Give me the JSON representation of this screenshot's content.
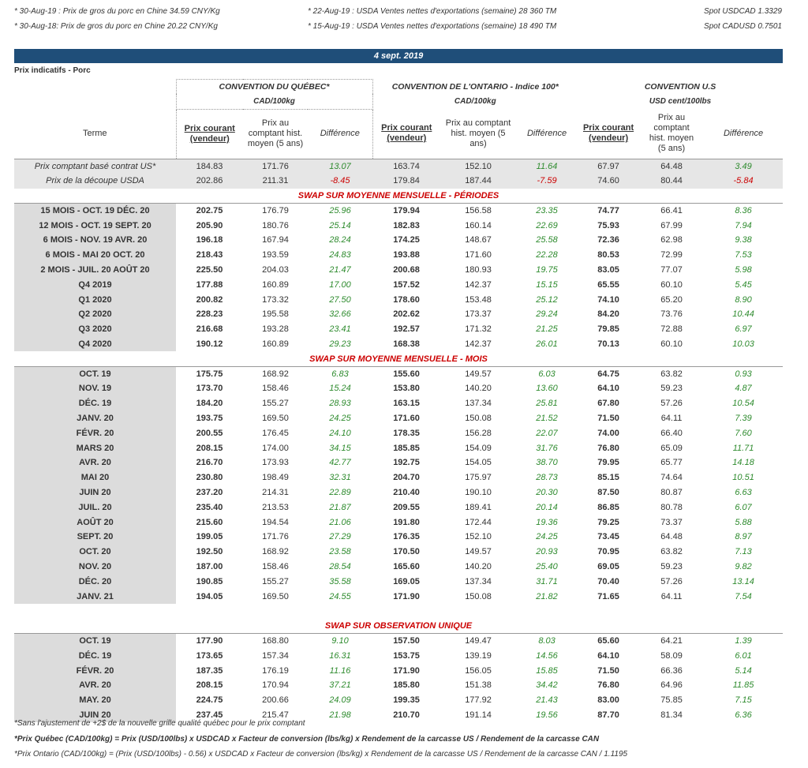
{
  "notes": {
    "n1": "* 30-Aug-19 : Prix de gros du porc en Chine  34.59 CNY/Kg",
    "n2": "* 30-Aug-18: Prix de gros du porc en Chine 20.22  CNY/Kg",
    "n3": "* 22-Aug-19 : USDA Ventes nettes d'exportations (semaine)  28 360 TM",
    "n4": "* 15-Aug-19 : USDA Ventes nettes d'exportations (semaine) 18 490 TM",
    "n5": "Spot USDCAD 1.3329",
    "n6": "Spot CADUSD 0.7501"
  },
  "banner": "4 sept. 2019",
  "subtitle": "Prix indicatifs - Porc",
  "header": {
    "qc_title": "CONVENTION DU QUÉBEC*",
    "qc_unit": "CAD/100kg",
    "on_title": "CONVENTION DE L'ONTARIO - Indice 100*",
    "on_unit": "CAD/100kg",
    "us_title": "CONVENTION U.S",
    "us_unit": "USD cent/100lbs",
    "terme": "Terme",
    "prix_courant": "Prix courant (vendeur)",
    "prix_hist_qc": "Prix au comptant hist. moyen (5 ans)",
    "prix_hist_on": "Prix au comptant hist. moyen (5 ans)",
    "prix_hist_us": "Prix au comptant hist. moyen (5 ans)",
    "difference": "Différence"
  },
  "ref_rows": [
    {
      "term": "Prix comptant basé contrat US*",
      "v": [
        "184.83",
        "171.76",
        "13.07",
        "163.74",
        "152.10",
        "11.64",
        "67.97",
        "64.48",
        "3.49"
      ],
      "neg": false
    },
    {
      "term": "Prix de la découpe USDA",
      "v": [
        "202.86",
        "211.31",
        "-8.45",
        "179.84",
        "187.44",
        "-7.59",
        "74.60",
        "80.44",
        "-5.84"
      ],
      "neg": true
    }
  ],
  "sections": [
    {
      "title": "SWAP SUR MOYENNE MENSUELLE - PÉRIODES",
      "rows": [
        {
          "term": "15 MOIS -  OCT. 19 DÉC. 20",
          "v": [
            "202.75",
            "176.79",
            "25.96",
            "179.94",
            "156.58",
            "23.35",
            "74.77",
            "66.41",
            "8.36"
          ]
        },
        {
          "term": "12 MOIS -  OCT. 19 SEPT. 20",
          "v": [
            "205.90",
            "180.76",
            "25.14",
            "182.83",
            "160.14",
            "22.69",
            "75.93",
            "67.99",
            "7.94"
          ]
        },
        {
          "term": "6 MOIS -  NOV. 19 AVR. 20",
          "v": [
            "196.18",
            "167.94",
            "28.24",
            "174.25",
            "148.67",
            "25.58",
            "72.36",
            "62.98",
            "9.38"
          ]
        },
        {
          "term": "6 MOIS -  MAI 20 OCT. 20",
          "v": [
            "218.43",
            "193.59",
            "24.83",
            "193.88",
            "171.60",
            "22.28",
            "80.53",
            "72.99",
            "7.53"
          ]
        },
        {
          "term": "2 MOIS -  JUIL. 20  AOÛT 20",
          "v": [
            "225.50",
            "204.03",
            "21.47",
            "200.68",
            "180.93",
            "19.75",
            "83.05",
            "77.07",
            "5.98"
          ]
        },
        {
          "term": "Q4 2019",
          "v": [
            "177.88",
            "160.89",
            "17.00",
            "157.52",
            "142.37",
            "15.15",
            "65.55",
            "60.10",
            "5.45"
          ]
        },
        {
          "term": "Q1 2020",
          "v": [
            "200.82",
            "173.32",
            "27.50",
            "178.60",
            "153.48",
            "25.12",
            "74.10",
            "65.20",
            "8.90"
          ]
        },
        {
          "term": "Q2 2020",
          "v": [
            "228.23",
            "195.58",
            "32.66",
            "202.62",
            "173.37",
            "29.24",
            "84.20",
            "73.76",
            "10.44"
          ]
        },
        {
          "term": "Q3 2020",
          "v": [
            "216.68",
            "193.28",
            "23.41",
            "192.57",
            "171.32",
            "21.25",
            "79.85",
            "72.88",
            "6.97"
          ]
        },
        {
          "term": "Q4 2020",
          "v": [
            "190.12",
            "160.89",
            "29.23",
            "168.38",
            "142.37",
            "26.01",
            "70.13",
            "60.10",
            "10.03"
          ]
        }
      ]
    },
    {
      "title": "SWAP SUR MOYENNE MENSUELLE - MOIS",
      "rows": [
        {
          "term": "OCT. 19",
          "v": [
            "175.75",
            "168.92",
            "6.83",
            "155.60",
            "149.57",
            "6.03",
            "64.75",
            "63.82",
            "0.93"
          ]
        },
        {
          "term": "NOV. 19",
          "v": [
            "173.70",
            "158.46",
            "15.24",
            "153.80",
            "140.20",
            "13.60",
            "64.10",
            "59.23",
            "4.87"
          ]
        },
        {
          "term": "DÉC. 19",
          "v": [
            "184.20",
            "155.27",
            "28.93",
            "163.15",
            "137.34",
            "25.81",
            "67.80",
            "57.26",
            "10.54"
          ]
        },
        {
          "term": "JANV. 20",
          "v": [
            "193.75",
            "169.50",
            "24.25",
            "171.60",
            "150.08",
            "21.52",
            "71.50",
            "64.11",
            "7.39"
          ]
        },
        {
          "term": "FÉVR. 20",
          "v": [
            "200.55",
            "176.45",
            "24.10",
            "178.35",
            "156.28",
            "22.07",
            "74.00",
            "66.40",
            "7.60"
          ]
        },
        {
          "term": "MARS 20",
          "v": [
            "208.15",
            "174.00",
            "34.15",
            "185.85",
            "154.09",
            "31.76",
            "76.80",
            "65.09",
            "11.71"
          ]
        },
        {
          "term": "AVR. 20",
          "v": [
            "216.70",
            "173.93",
            "42.77",
            "192.75",
            "154.05",
            "38.70",
            "79.95",
            "65.77",
            "14.18"
          ]
        },
        {
          "term": "MAI 20",
          "v": [
            "230.80",
            "198.49",
            "32.31",
            "204.70",
            "175.97",
            "28.73",
            "85.15",
            "74.64",
            "10.51"
          ]
        },
        {
          "term": "JUIN 20",
          "v": [
            "237.20",
            "214.31",
            "22.89",
            "210.40",
            "190.10",
            "20.30",
            "87.50",
            "80.87",
            "6.63"
          ]
        },
        {
          "term": "JUIL. 20",
          "v": [
            "235.40",
            "213.53",
            "21.87",
            "209.55",
            "189.41",
            "20.14",
            "86.85",
            "80.78",
            "6.07"
          ]
        },
        {
          "term": "AOÛT 20",
          "v": [
            "215.60",
            "194.54",
            "21.06",
            "191.80",
            "172.44",
            "19.36",
            "79.25",
            "73.37",
            "5.88"
          ]
        },
        {
          "term": "SEPT. 20",
          "v": [
            "199.05",
            "171.76",
            "27.29",
            "176.35",
            "152.10",
            "24.25",
            "73.45",
            "64.48",
            "8.97"
          ]
        },
        {
          "term": "OCT. 20",
          "v": [
            "192.50",
            "168.92",
            "23.58",
            "170.50",
            "149.57",
            "20.93",
            "70.95",
            "63.82",
            "7.13"
          ]
        },
        {
          "term": "NOV. 20",
          "v": [
            "187.00",
            "158.46",
            "28.54",
            "165.60",
            "140.20",
            "25.40",
            "69.05",
            "59.23",
            "9.82"
          ]
        },
        {
          "term": "DÉC. 20",
          "v": [
            "190.85",
            "155.27",
            "35.58",
            "169.05",
            "137.34",
            "31.71",
            "70.40",
            "57.26",
            "13.14"
          ]
        },
        {
          "term": "JANV. 21",
          "v": [
            "194.05",
            "169.50",
            "24.55",
            "171.90",
            "150.08",
            "21.82",
            "71.65",
            "64.11",
            "7.54"
          ]
        }
      ]
    },
    {
      "title": "SWAP SUR OBSERVATION UNIQUE",
      "rows": [
        {
          "term": "OCT. 19",
          "v": [
            "177.90",
            "168.80",
            "9.10",
            "157.50",
            "149.47",
            "8.03",
            "65.60",
            "64.21",
            "1.39"
          ]
        },
        {
          "term": "DÉC. 19",
          "v": [
            "173.65",
            "157.34",
            "16.31",
            "153.75",
            "139.19",
            "14.56",
            "64.10",
            "58.09",
            "6.01"
          ]
        },
        {
          "term": "FÉVR. 20",
          "v": [
            "187.35",
            "176.19",
            "11.16",
            "171.90",
            "156.05",
            "15.85",
            "71.50",
            "66.36",
            "5.14"
          ]
        },
        {
          "term": "AVR. 20",
          "v": [
            "208.15",
            "170.94",
            "37.21",
            "185.80",
            "151.38",
            "34.42",
            "76.80",
            "64.96",
            "11.85"
          ]
        },
        {
          "term": "MAY. 20",
          "v": [
            "224.75",
            "200.66",
            "24.09",
            "199.35",
            "177.92",
            "21.43",
            "83.00",
            "75.85",
            "7.15"
          ]
        },
        {
          "term": "JUIN 20",
          "v": [
            "237.45",
            "215.47",
            "21.98",
            "210.70",
            "191.14",
            "19.56",
            "87.70",
            "81.34",
            "6.36"
          ]
        }
      ]
    }
  ],
  "footnotes": {
    "f1": "*Sans l'ajustement de +2$ de la nouvelle grille qualité québec pour le prix comptant",
    "f2": "*Prix Québec (CAD/100kg) = Prix (USD/100lbs) x USDCAD x Facteur de conversion (lbs/kg) x Rendement de la carcasse US / Rendement de la carcasse CAN",
    "f3": "*Prix Ontario (CAD/100kg) = (Prix (USD/100lbs) - 0.56) x USDCAD x Facteur de conversion (lbs/kg) x Rendement de la carcasse US / Rendement de la carcasse CAN / 1.1195"
  }
}
